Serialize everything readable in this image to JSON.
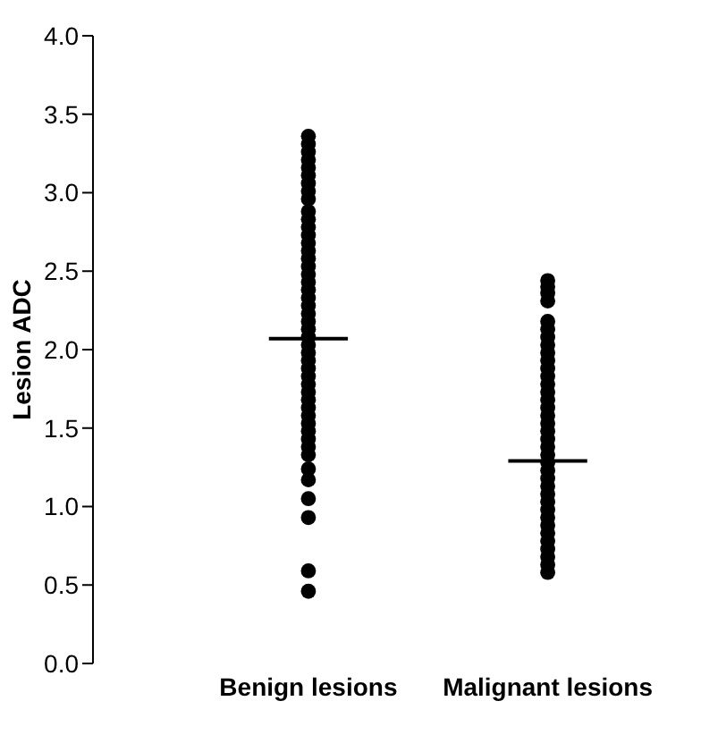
{
  "chart_data": {
    "type": "scatter",
    "ylabel": "Lesion ADC",
    "categories": [
      "Benign lesions",
      "Malignant lesions"
    ],
    "ylim": [
      0,
      4
    ],
    "yticks": [
      {
        "value": 0,
        "label": "0.0"
      },
      {
        "value": 0.5,
        "label": "0.5"
      },
      {
        "value": 1,
        "label": "1.0"
      },
      {
        "value": 1.5,
        "label": "1.5"
      },
      {
        "value": 2,
        "label": "2.0"
      },
      {
        "value": 2.5,
        "label": "2.5"
      },
      {
        "value": 3,
        "label": "3.0"
      },
      {
        "value": 3.5,
        "label": "3.5"
      },
      {
        "value": 4,
        "label": "4.0"
      }
    ],
    "grid": false,
    "legend": false,
    "series": [
      {
        "type": "scatter",
        "color": "#000000",
        "marker": "circle",
        "x": [
          "Benign lesions",
          "Benign lesions",
          "Benign lesions",
          "Benign lesions",
          "Benign lesions",
          "Benign lesions",
          "Benign lesions",
          "Benign lesions",
          "Benign lesions",
          "Benign lesions",
          "Benign lesions",
          "Benign lesions",
          "Benign lesions",
          "Benign lesions",
          "Benign lesions",
          "Benign lesions",
          "Benign lesions",
          "Benign lesions",
          "Benign lesions",
          "Benign lesions",
          "Benign lesions",
          "Benign lesions",
          "Benign lesions",
          "Benign lesions",
          "Benign lesions",
          "Benign lesions",
          "Benign lesions",
          "Benign lesions",
          "Benign lesions",
          "Benign lesions",
          "Benign lesions",
          "Benign lesions",
          "Benign lesions",
          "Benign lesions",
          "Benign lesions",
          "Benign lesions",
          "Benign lesions",
          "Benign lesions",
          "Benign lesions",
          "Benign lesions",
          "Benign lesions",
          "Benign lesions",
          "Benign lesions",
          "Benign lesions",
          "Benign lesions",
          "Benign lesions",
          "Benign lesions",
          "Malignant lesions",
          "Malignant lesions",
          "Malignant lesions",
          "Malignant lesions",
          "Malignant lesions",
          "Malignant lesions",
          "Malignant lesions",
          "Malignant lesions",
          "Malignant lesions",
          "Malignant lesions",
          "Malignant lesions",
          "Malignant lesions",
          "Malignant lesions",
          "Malignant lesions",
          "Malignant lesions",
          "Malignant lesions",
          "Malignant lesions",
          "Malignant lesions",
          "Malignant lesions",
          "Malignant lesions",
          "Malignant lesions",
          "Malignant lesions",
          "Malignant lesions",
          "Malignant lesions",
          "Malignant lesions",
          "Malignant lesions",
          "Malignant lesions",
          "Malignant lesions",
          "Malignant lesions",
          "Malignant lesions",
          "Malignant lesions",
          "Malignant lesions",
          "Malignant lesions",
          "Malignant lesions",
          "Malignant lesions",
          "Malignant lesions",
          "Malignant lesions"
        ],
        "values": [
          3.36,
          3.31,
          3.26,
          3.21,
          3.16,
          3.11,
          3.06,
          3.01,
          2.96,
          2.88,
          2.83,
          2.78,
          2.73,
          2.68,
          2.63,
          2.58,
          2.53,
          2.48,
          2.43,
          2.38,
          2.33,
          2.28,
          2.23,
          2.18,
          2.13,
          2.08,
          2.03,
          1.98,
          1.93,
          1.88,
          1.83,
          1.78,
          1.73,
          1.68,
          1.63,
          1.58,
          1.53,
          1.48,
          1.43,
          1.38,
          1.33,
          1.24,
          1.17,
          1.05,
          0.93,
          0.59,
          0.46,
          2.44,
          2.4,
          2.36,
          2.31,
          2.18,
          2.13,
          2.08,
          2.03,
          1.98,
          1.93,
          1.88,
          1.83,
          1.78,
          1.73,
          1.68,
          1.63,
          1.58,
          1.53,
          1.48,
          1.43,
          1.38,
          1.33,
          1.28,
          1.23,
          1.18,
          1.13,
          1.08,
          1.03,
          0.98,
          0.93,
          0.88,
          0.83,
          0.78,
          0.73,
          0.68,
          0.63,
          0.58
        ]
      }
    ],
    "ref_lines": [
      {
        "axis": "y",
        "value": 2.07,
        "color": "#000000"
      },
      {
        "axis": "y",
        "value": 1.29,
        "color": "#000000"
      }
    ]
  }
}
